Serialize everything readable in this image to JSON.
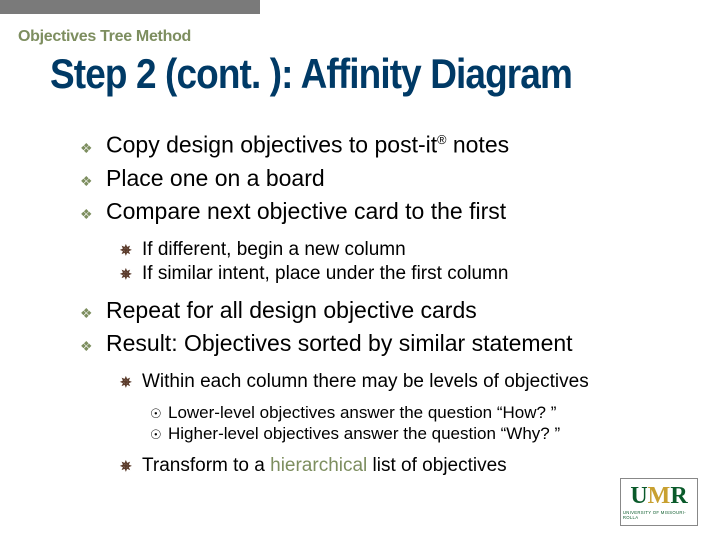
{
  "colors": {
    "accent_green": "#7d8e5f",
    "title_blue": "#003a66",
    "sub_bullet_brown": "#5a3a2a",
    "logo_green": "#0a5a2a",
    "logo_gold": "#c8a030",
    "top_bar": "#7a7a7a",
    "bg": "#ffffff"
  },
  "section_label": "Objectives Tree Method",
  "slide_title": "Step 2 (cont. ): Affinity Diagram",
  "bullets": {
    "b1_pre": "Copy design objectives to post-it",
    "b1_sup": "®",
    "b1_post": " notes",
    "b2": "Place one on a board",
    "b3": "Compare next objective card to the first",
    "b3a": "If different, begin a new column",
    "b3b": "If similar intent, place under the first column",
    "b4": "Repeat for all design objective cards",
    "b5": "Result: Objectives sorted by similar statement",
    "b5a": "Within each column there may be levels of objectives",
    "b5a1": "Lower-level objectives answer the question “How? ”",
    "b5a2": "Higher-level objectives answer the question “Why? ”",
    "b5b_pre": "Transform to a ",
    "b5b_accent": "hierarchical",
    "b5b_post": " list of objectives"
  },
  "bullet_glyphs": {
    "l1": "❖",
    "l2": "✵",
    "l3": "☉"
  },
  "logo": {
    "text": "UMR",
    "subtitle": "UNIVERSITY OF MISSOURI-ROLLA"
  },
  "typography": {
    "section_label_size": 16,
    "title_size": 42,
    "l1_size": 23,
    "l2_size": 19,
    "l3_size": 17
  }
}
